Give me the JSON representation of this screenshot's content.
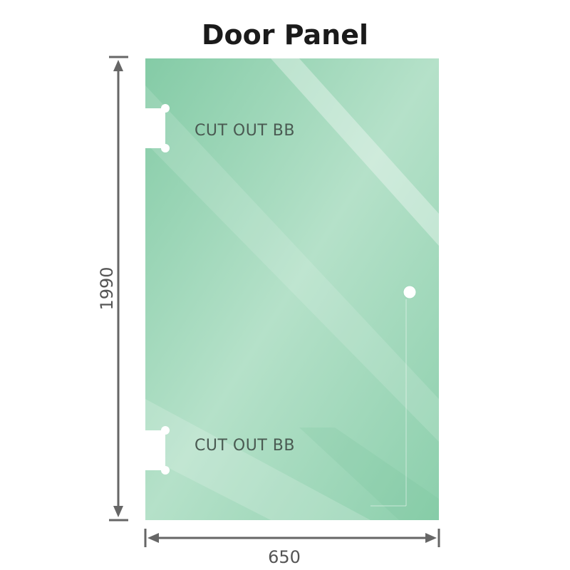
{
  "title": "Door Panel",
  "cutout_top_label": "CUT OUT BB",
  "cutout_bottom_label": "CUT OUT BB",
  "height_dimension": "1990",
  "width_dimension": "650",
  "colors": {
    "glass": "#8fd0ae",
    "glass_light": "#b9e3cb",
    "dimension_line": "#666666"
  }
}
